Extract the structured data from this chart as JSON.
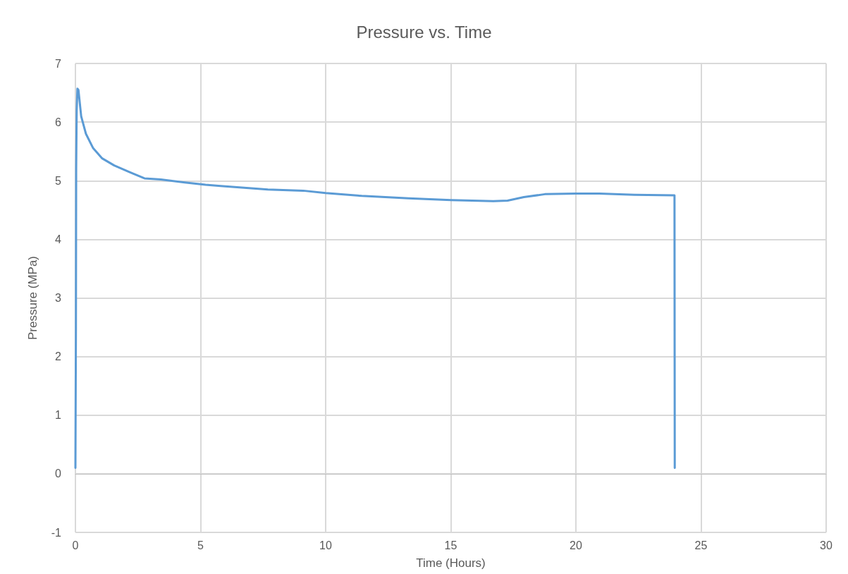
{
  "chart_data": {
    "type": "line",
    "title": "Pressure vs. Time",
    "xlabel": "Time (Hours)",
    "ylabel": "Pressure (MPa)",
    "x": [
      0,
      0.02,
      0.03,
      0.05,
      0.08,
      0.12,
      0.23,
      0.42,
      0.7,
      1.07,
      1.55,
      2.2,
      2.76,
      3.41,
      4.37,
      5.2,
      5.8,
      7.69,
      9.1,
      10,
      11.44,
      13.32,
      15.01,
      16.7,
      17.27,
      17.92,
      18.76,
      20,
      20.93,
      22.34,
      23.94,
      23.95
    ],
    "series": [
      {
        "color": "#5b9bd5",
        "values": [
          0.1,
          2.5,
          5.2,
          6.2,
          6.57,
          6.55,
          6.1,
          5.8,
          5.56,
          5.38,
          5.26,
          5.14,
          5.04,
          5.02,
          4.97,
          4.93,
          4.91,
          4.85,
          4.83,
          4.79,
          4.74,
          4.7,
          4.67,
          4.65,
          4.66,
          4.72,
          4.77,
          4.78,
          4.78,
          4.76,
          4.75,
          0.1
        ]
      }
    ],
    "xlim": [
      0,
      30
    ],
    "xticks": [
      0,
      5,
      10,
      15,
      20,
      25,
      30
    ],
    "ylim": [
      -1,
      7
    ],
    "yticks": [
      -1,
      0,
      1,
      2,
      3,
      4,
      5,
      6,
      7
    ],
    "grid": true,
    "marker": "none",
    "line_style": "solid"
  }
}
